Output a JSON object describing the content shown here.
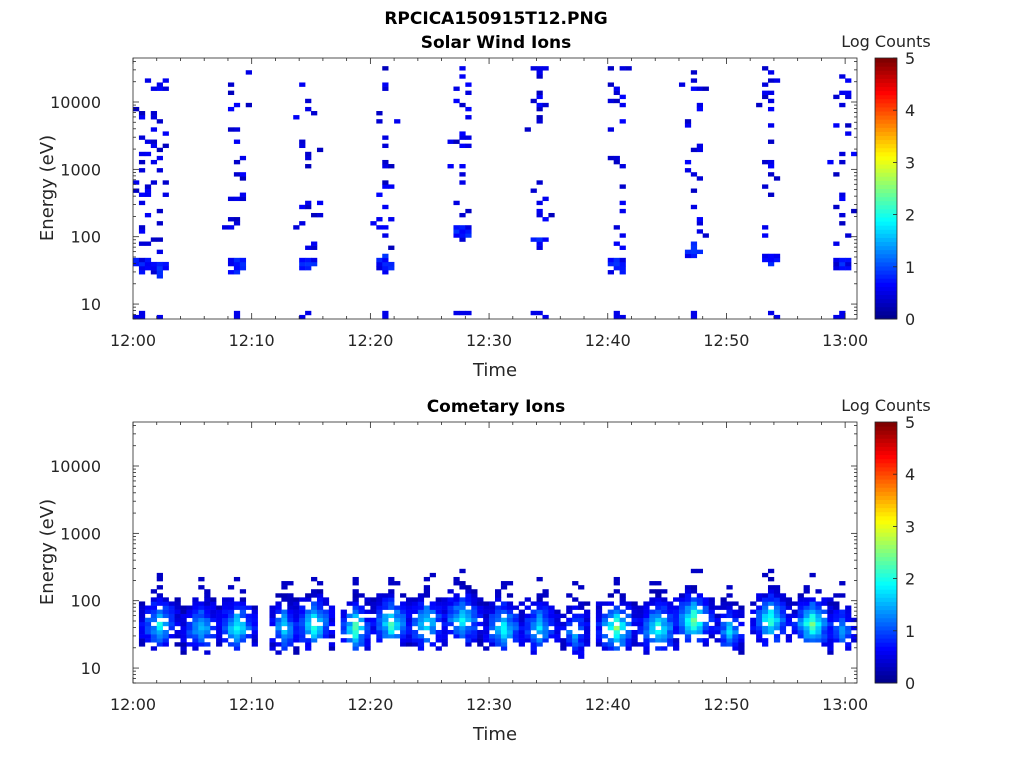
{
  "figure_title": "RPCICA150915T12.PNG",
  "colors": {
    "axis": "#262626",
    "background": "#ffffff",
    "colormap": [
      "#00008f",
      "#0000ff",
      "#0080ff",
      "#00ffff",
      "#80ff80",
      "#ffff00",
      "#ff8000",
      "#ff0000",
      "#800000"
    ]
  },
  "chart_data": [
    {
      "type": "heatmap",
      "title": "Solar Wind Ions",
      "xlabel": "Time",
      "ylabel": "Energy (eV)",
      "x_ticks": [
        "12:00",
        "12:10",
        "12:20",
        "12:30",
        "12:40",
        "12:50",
        "13:00"
      ],
      "y_ticks": [
        "10",
        "100",
        "1000",
        "10000"
      ],
      "y_scale": "log",
      "xlim_minutes": [
        0,
        61
      ],
      "ylim": [
        6,
        45000
      ],
      "colorbar": {
        "label": "Log Counts",
        "ticks": [
          "0",
          "1",
          "2",
          "3",
          "4",
          "5"
        ],
        "range": [
          0,
          5
        ]
      },
      "bursts": [
        {
          "t": 0.6,
          "peak_low": 38,
          "spread": 4,
          "max_log": 1.0
        },
        {
          "t": 2.4,
          "peak_low": 35,
          "spread": 5,
          "max_log": 1.0
        },
        {
          "t": 8.5,
          "peak_low": 38,
          "spread": 6,
          "max_log": 1.0
        },
        {
          "t": 14.8,
          "peak_low": 40,
          "spread": 6,
          "max_log": 1.0
        },
        {
          "t": 21.2,
          "peak_low": 38,
          "spread": 5,
          "max_log": 1.0
        },
        {
          "t": 27.8,
          "peak_low": 120,
          "spread": 5,
          "max_log": 1.0
        },
        {
          "t": 34.0,
          "peak_low": 90,
          "spread": 4,
          "max_log": 1.0
        },
        {
          "t": 40.5,
          "peak_low": 40,
          "spread": 6,
          "max_log": 1.0
        },
        {
          "t": 47.3,
          "peak_low": 60,
          "spread": 5,
          "max_log": 1.0
        },
        {
          "t": 53.6,
          "peak_low": 45,
          "spread": 5,
          "max_log": 1.0
        },
        {
          "t": 59.5,
          "peak_low": 40,
          "spread": 4,
          "max_log": 1.0
        }
      ]
    },
    {
      "type": "heatmap",
      "title": "Cometary Ions",
      "xlabel": "Time",
      "ylabel": "Energy (eV)",
      "x_ticks": [
        "12:00",
        "12:10",
        "12:20",
        "12:30",
        "12:40",
        "12:50",
        "13:00"
      ],
      "y_ticks": [
        "10",
        "100",
        "1000",
        "10000"
      ],
      "y_scale": "log",
      "xlim_minutes": [
        0,
        61
      ],
      "ylim": [
        6,
        45000
      ],
      "colorbar": {
        "label": "Log Counts",
        "ticks": [
          "0",
          "1",
          "2",
          "3",
          "4",
          "5"
        ],
        "range": [
          0,
          5
        ]
      },
      "bursts": [
        {
          "t": 2.0,
          "center": 45,
          "width": 3.0,
          "max_log": 1.7
        },
        {
          "t": 5.5,
          "center": 40,
          "width": 2.5,
          "max_log": 1.5
        },
        {
          "t": 8.8,
          "center": 42,
          "width": 3.0,
          "max_log": 1.9
        },
        {
          "t": 12.5,
          "center": 40,
          "width": 2.0,
          "max_log": 1.6
        },
        {
          "t": 15.0,
          "center": 48,
          "width": 3.0,
          "max_log": 2.0
        },
        {
          "t": 18.7,
          "center": 40,
          "width": 2.0,
          "max_log": 2.2
        },
        {
          "t": 21.5,
          "center": 45,
          "width": 3.0,
          "max_log": 2.0
        },
        {
          "t": 24.5,
          "center": 45,
          "width": 3.0,
          "max_log": 1.8
        },
        {
          "t": 27.5,
          "center": 50,
          "width": 3.0,
          "max_log": 1.8
        },
        {
          "t": 31.0,
          "center": 42,
          "width": 2.5,
          "max_log": 1.8
        },
        {
          "t": 34.3,
          "center": 42,
          "width": 3.0,
          "max_log": 1.6
        },
        {
          "t": 37.2,
          "center": 35,
          "width": 2.0,
          "max_log": 1.3
        },
        {
          "t": 40.8,
          "center": 42,
          "width": 3.0,
          "max_log": 2.3
        },
        {
          "t": 44.0,
          "center": 40,
          "width": 2.5,
          "max_log": 2.0
        },
        {
          "t": 47.4,
          "center": 50,
          "width": 3.0,
          "max_log": 2.3
        },
        {
          "t": 50.2,
          "center": 35,
          "width": 2.0,
          "max_log": 1.5
        },
        {
          "t": 53.7,
          "center": 50,
          "width": 3.0,
          "max_log": 2.0
        },
        {
          "t": 57.2,
          "center": 45,
          "width": 2.5,
          "max_log": 2.2
        },
        {
          "t": 59.8,
          "center": 35,
          "width": 1.5,
          "max_log": 1.3
        }
      ]
    }
  ]
}
